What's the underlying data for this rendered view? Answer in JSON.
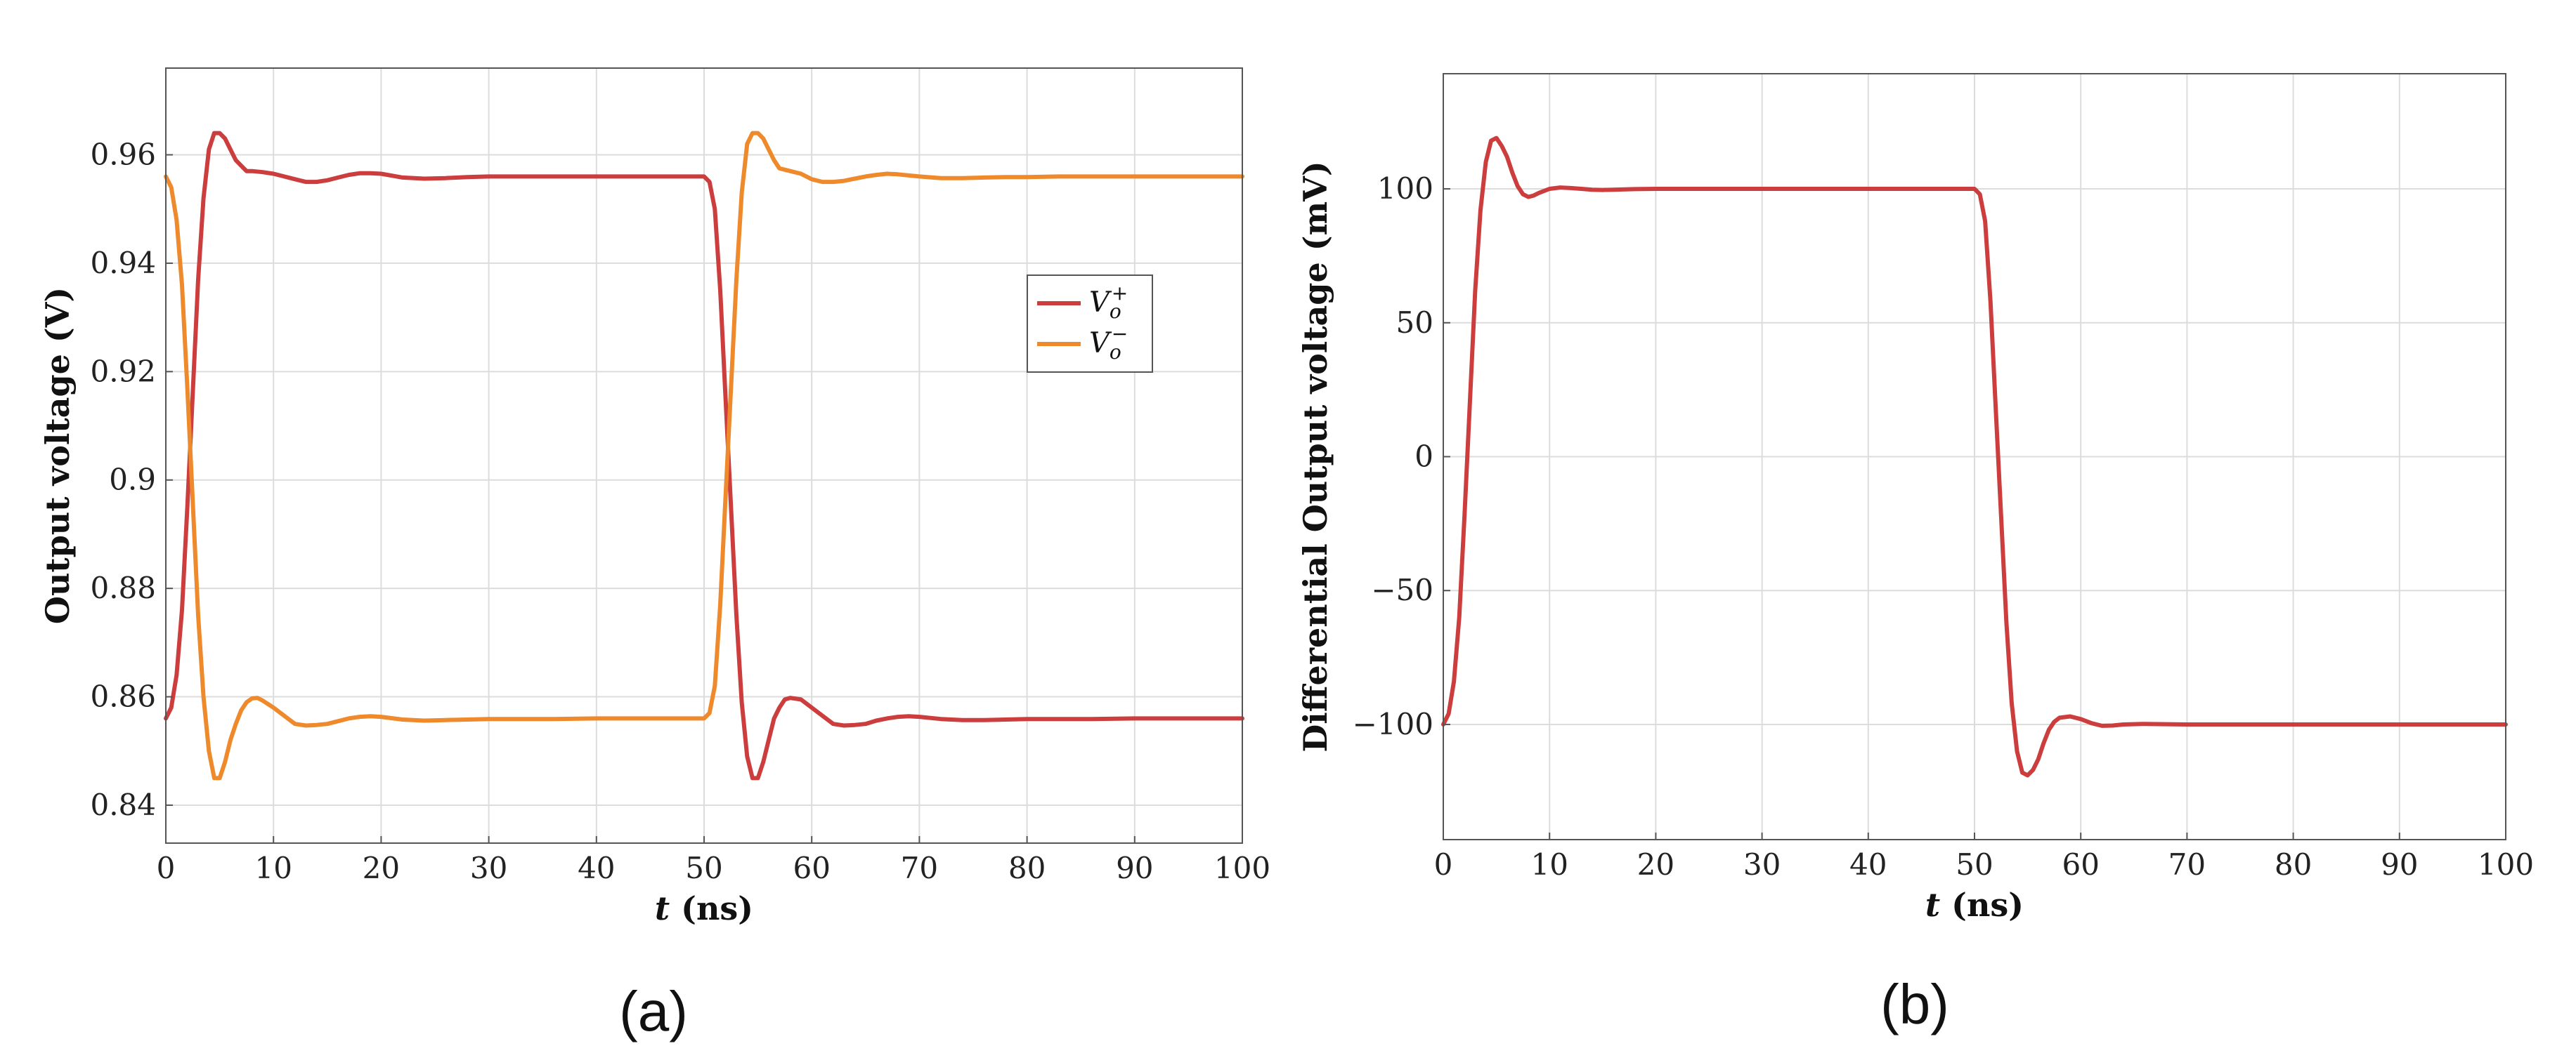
{
  "chart_data": [
    {
      "type": "line",
      "caption": "(a)",
      "xlabel_var": "t",
      "xlabel_unit": " (ns)",
      "ylabel": "Output voltage (V)",
      "xlim": [
        0,
        100
      ],
      "ylim": [
        0.833,
        0.976
      ],
      "xticks": [
        0,
        10,
        20,
        30,
        40,
        50,
        60,
        70,
        80,
        90,
        100
      ],
      "yticks": [
        0.84,
        0.86,
        0.88,
        0.9,
        0.92,
        0.94,
        0.96
      ],
      "ytick_labels": [
        "0.84",
        "0.86",
        "0.88",
        "0.9",
        "0.92",
        "0.94",
        "0.96"
      ],
      "grid": true,
      "legend": "right",
      "series": [
        {
          "name": "Vo+",
          "label_base": "V",
          "label_sub": "o",
          "label_sup": "+",
          "color": "#cc3d3d",
          "x": [
            0,
            0.5,
            1,
            1.5,
            2,
            2.5,
            3,
            3.5,
            4,
            4.5,
            5,
            5.5,
            6,
            6.5,
            7,
            7.5,
            8,
            9,
            10,
            11,
            12,
            13,
            14,
            15,
            16,
            17,
            18,
            19,
            20,
            22,
            24,
            26,
            28,
            30,
            33,
            36,
            40,
            45,
            50,
            50.5,
            51,
            51.5,
            52,
            52.5,
            53,
            53.5,
            54,
            54.5,
            55,
            55.5,
            56,
            56.5,
            57,
            57.5,
            58,
            59,
            60,
            61,
            62,
            63,
            64,
            65,
            66,
            67,
            68,
            69,
            70,
            72,
            74,
            76,
            78,
            80,
            83,
            86,
            90,
            95,
            100
          ],
          "y": [
            0.856,
            0.858,
            0.864,
            0.876,
            0.895,
            0.916,
            0.937,
            0.952,
            0.961,
            0.964,
            0.964,
            0.963,
            0.961,
            0.959,
            0.958,
            0.957,
            0.957,
            0.9568,
            0.9565,
            0.956,
            0.9555,
            0.955,
            0.955,
            0.9553,
            0.9558,
            0.9563,
            0.9566,
            0.9566,
            0.9565,
            0.9558,
            0.9556,
            0.9557,
            0.9559,
            0.956,
            0.956,
            0.956,
            0.956,
            0.956,
            0.956,
            0.955,
            0.95,
            0.935,
            0.915,
            0.895,
            0.875,
            0.859,
            0.849,
            0.845,
            0.845,
            0.848,
            0.852,
            0.856,
            0.858,
            0.8595,
            0.8598,
            0.8595,
            0.858,
            0.8565,
            0.855,
            0.8547,
            0.8548,
            0.855,
            0.8556,
            0.856,
            0.8563,
            0.8564,
            0.8563,
            0.8559,
            0.8557,
            0.8557,
            0.8558,
            0.8559,
            0.8559,
            0.8559,
            0.856,
            0.856,
            0.856
          ]
        },
        {
          "name": "Vo-",
          "label_base": "V",
          "label_sub": "o",
          "label_sup": "−",
          "color": "#ee8a2b",
          "x": [
            0,
            0.5,
            1,
            1.5,
            2,
            2.5,
            3,
            3.5,
            4,
            4.5,
            5,
            5.5,
            6,
            6.5,
            7,
            7.5,
            8,
            8.5,
            9,
            10,
            11,
            12,
            13,
            14,
            15,
            16,
            17,
            18,
            19,
            20,
            22,
            24,
            26,
            28,
            30,
            33,
            36,
            40,
            45,
            50,
            50.5,
            51,
            51.5,
            52,
            52.5,
            53,
            53.5,
            54,
            54.5,
            55,
            55.5,
            56,
            56.5,
            57,
            58,
            59,
            60,
            61,
            62,
            63,
            64,
            65,
            66,
            67,
            68,
            69,
            70,
            72,
            74,
            76,
            78,
            80,
            83,
            86,
            90,
            95,
            100
          ],
          "y": [
            0.956,
            0.954,
            0.948,
            0.936,
            0.917,
            0.896,
            0.875,
            0.86,
            0.85,
            0.845,
            0.845,
            0.848,
            0.852,
            0.855,
            0.8575,
            0.859,
            0.8597,
            0.8598,
            0.8593,
            0.858,
            0.8565,
            0.855,
            0.8547,
            0.8548,
            0.855,
            0.8555,
            0.856,
            0.8563,
            0.8564,
            0.8563,
            0.8558,
            0.8556,
            0.8557,
            0.8558,
            0.8559,
            0.8559,
            0.8559,
            0.856,
            0.856,
            0.856,
            0.857,
            0.862,
            0.877,
            0.897,
            0.917,
            0.937,
            0.953,
            0.962,
            0.964,
            0.964,
            0.963,
            0.961,
            0.959,
            0.9575,
            0.957,
            0.9565,
            0.9555,
            0.955,
            0.955,
            0.9552,
            0.9556,
            0.956,
            0.9563,
            0.9565,
            0.9564,
            0.9562,
            0.956,
            0.9557,
            0.9557,
            0.9558,
            0.9559,
            0.9559,
            0.956,
            0.956,
            0.956,
            0.956,
            0.956
          ]
        }
      ]
    },
    {
      "type": "line",
      "caption": "(b)",
      "xlabel_var": "t",
      "xlabel_unit": " (ns)",
      "ylabel": "Differential Output voltage (mV)",
      "xlim": [
        0,
        100
      ],
      "ylim": [
        -143,
        143
      ],
      "xticks": [
        0,
        10,
        20,
        30,
        40,
        50,
        60,
        70,
        80,
        90,
        100
      ],
      "yticks": [
        -100,
        -50,
        0,
        50,
        100
      ],
      "ytick_labels": [
        "−100",
        "−50",
        "0",
        "50",
        "100"
      ],
      "grid": true,
      "series": [
        {
          "color": "#cc3d3d",
          "x": [
            0,
            0.5,
            1,
            1.5,
            2,
            2.5,
            3,
            3.5,
            4,
            4.5,
            5,
            5.5,
            6,
            6.5,
            7,
            7.5,
            8,
            8.5,
            9,
            10,
            11,
            12,
            13,
            14,
            15,
            16,
            18,
            20,
            25,
            30,
            40,
            50,
            50.5,
            51,
            51.5,
            52,
            52.5,
            53,
            53.5,
            54,
            54.5,
            55,
            55.5,
            56,
            56.5,
            57,
            57.5,
            58,
            59,
            60,
            61,
            62,
            63,
            64,
            66,
            68,
            70,
            75,
            80,
            90,
            100
          ],
          "y": [
            -100,
            -96,
            -84,
            -60,
            -22,
            20,
            62,
            92,
            110,
            118,
            119,
            116,
            112,
            106,
            101,
            98,
            97,
            97.5,
            98.5,
            100,
            100.5,
            100.3,
            100,
            99.7,
            99.6,
            99.7,
            99.9,
            100,
            100,
            100,
            100,
            100,
            98,
            88,
            58,
            18,
            -22,
            -62,
            -92,
            -110,
            -118,
            -119,
            -117,
            -113,
            -107,
            -102,
            -99,
            -97.5,
            -97,
            -98,
            -99.5,
            -100.5,
            -100.4,
            -100,
            -99.8,
            -99.9,
            -100,
            -100,
            -100,
            -100,
            -100
          ]
        }
      ]
    }
  ]
}
